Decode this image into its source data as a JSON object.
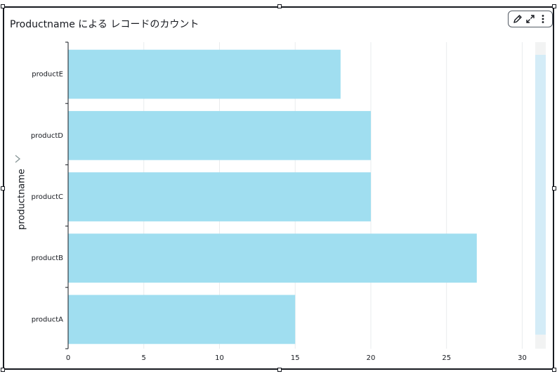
{
  "title": "Productname による レコードのカウント",
  "toolbar": {
    "edit_icon": "pencil-icon",
    "expand_icon": "expand-icon",
    "menu_icon": "more-vertical-icon"
  },
  "chart_data": {
    "type": "bar",
    "orientation": "horizontal",
    "title": "Productname による レコードのカウント",
    "ylabel": "productname",
    "xlabel": "",
    "categories": [
      "productE",
      "productD",
      "productC",
      "productB",
      "productA"
    ],
    "values": [
      18,
      20,
      20,
      27,
      15
    ],
    "xlim": [
      0,
      31
    ],
    "xticks": [
      0,
      5,
      10,
      15,
      20,
      25,
      30
    ],
    "grid": true,
    "color": "#a0def0"
  }
}
